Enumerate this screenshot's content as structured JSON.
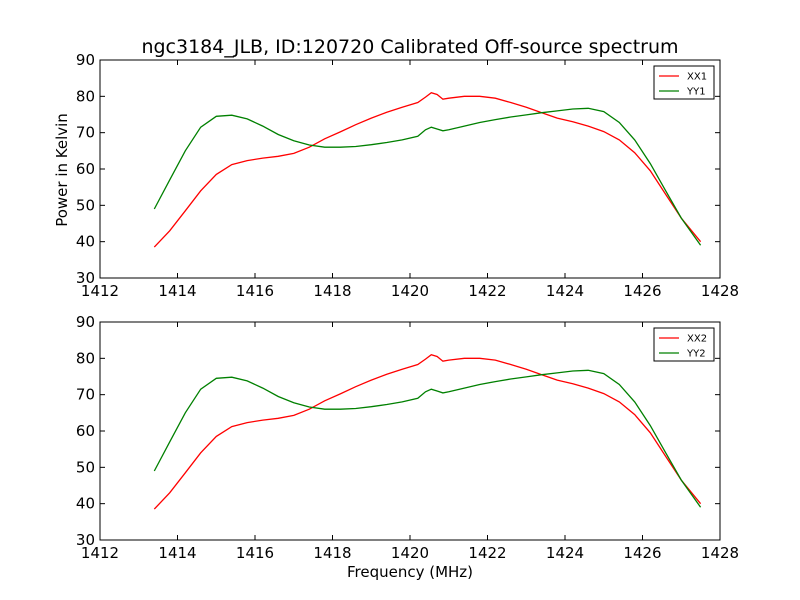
{
  "title": "ngc3184_JLB, ID:120720 Calibrated Off-source spectrum",
  "xlabel": "Frequency (MHz)",
  "ylabel": "Power in Kelvin",
  "colors": {
    "XX": "#ff0000",
    "YY": "#008000",
    "axes": "#000000"
  },
  "chart_data": [
    {
      "type": "line",
      "xlabel": "",
      "ylabel": "Power in Kelvin",
      "xlim": [
        1412,
        1428
      ],
      "ylim": [
        30,
        90
      ],
      "xticks": [
        1412,
        1414,
        1416,
        1418,
        1420,
        1422,
        1424,
        1426,
        1428
      ],
      "yticks": [
        30,
        40,
        50,
        60,
        70,
        80,
        90
      ],
      "grid": false,
      "legend": "top-right",
      "series": [
        {
          "name": "XX1",
          "color": "#ff0000",
          "x": [
            1413.4,
            1413.8,
            1414.2,
            1414.6,
            1415.0,
            1415.4,
            1415.8,
            1416.2,
            1416.6,
            1417.0,
            1417.4,
            1417.8,
            1418.2,
            1418.6,
            1419.0,
            1419.4,
            1419.8,
            1420.2,
            1420.4,
            1420.55,
            1420.7,
            1420.85,
            1421.0,
            1421.4,
            1421.8,
            1422.2,
            1422.6,
            1423.0,
            1423.4,
            1423.8,
            1424.2,
            1424.6,
            1425.0,
            1425.4,
            1425.8,
            1426.2,
            1426.6,
            1427.0,
            1427.5
          ],
          "y": [
            38.5,
            43.0,
            48.5,
            54.0,
            58.5,
            61.2,
            62.3,
            63.0,
            63.5,
            64.3,
            66.0,
            68.3,
            70.2,
            72.2,
            74.0,
            75.6,
            77.0,
            78.3,
            79.8,
            81.0,
            80.5,
            79.2,
            79.5,
            80.0,
            80.0,
            79.5,
            78.3,
            77.0,
            75.5,
            74.0,
            73.0,
            71.8,
            70.3,
            68.0,
            64.5,
            59.5,
            53.0,
            46.5,
            40.0
          ]
        },
        {
          "name": "YY1",
          "color": "#008000",
          "x": [
            1413.4,
            1413.8,
            1414.2,
            1414.6,
            1415.0,
            1415.4,
            1415.8,
            1416.2,
            1416.6,
            1417.0,
            1417.4,
            1417.8,
            1418.2,
            1418.6,
            1419.0,
            1419.4,
            1419.8,
            1420.2,
            1420.4,
            1420.55,
            1420.7,
            1420.85,
            1421.0,
            1421.4,
            1421.8,
            1422.2,
            1422.6,
            1423.0,
            1423.4,
            1423.8,
            1424.2,
            1424.6,
            1425.0,
            1425.4,
            1425.8,
            1426.2,
            1426.6,
            1427.0,
            1427.5
          ],
          "y": [
            49.0,
            57.0,
            65.0,
            71.5,
            74.5,
            74.8,
            73.8,
            71.8,
            69.5,
            67.8,
            66.6,
            66.0,
            66.0,
            66.2,
            66.7,
            67.3,
            68.0,
            69.0,
            70.8,
            71.5,
            71.0,
            70.5,
            70.8,
            71.8,
            72.8,
            73.6,
            74.3,
            74.9,
            75.5,
            76.0,
            76.5,
            76.7,
            75.8,
            72.8,
            68.0,
            61.5,
            54.0,
            46.5,
            39.0
          ]
        }
      ]
    },
    {
      "type": "line",
      "xlabel": "Frequency (MHz)",
      "ylabel": "",
      "xlim": [
        1412,
        1428
      ],
      "ylim": [
        30,
        90
      ],
      "xticks": [
        1412,
        1414,
        1416,
        1418,
        1420,
        1422,
        1424,
        1426,
        1428
      ],
      "yticks": [
        30,
        40,
        50,
        60,
        70,
        80,
        90
      ],
      "grid": false,
      "legend": "top-right",
      "series": [
        {
          "name": "XX2",
          "color": "#ff0000",
          "x": [
            1413.4,
            1413.8,
            1414.2,
            1414.6,
            1415.0,
            1415.4,
            1415.8,
            1416.2,
            1416.6,
            1417.0,
            1417.4,
            1417.8,
            1418.2,
            1418.6,
            1419.0,
            1419.4,
            1419.8,
            1420.2,
            1420.4,
            1420.55,
            1420.7,
            1420.85,
            1421.0,
            1421.4,
            1421.8,
            1422.2,
            1422.6,
            1423.0,
            1423.4,
            1423.8,
            1424.2,
            1424.6,
            1425.0,
            1425.4,
            1425.8,
            1426.2,
            1426.6,
            1427.0,
            1427.5
          ],
          "y": [
            38.5,
            43.0,
            48.5,
            54.0,
            58.5,
            61.2,
            62.3,
            63.0,
            63.5,
            64.3,
            66.0,
            68.3,
            70.2,
            72.2,
            74.0,
            75.6,
            77.0,
            78.3,
            79.8,
            81.0,
            80.5,
            79.2,
            79.5,
            80.0,
            80.0,
            79.5,
            78.3,
            77.0,
            75.5,
            74.0,
            73.0,
            71.8,
            70.3,
            68.0,
            64.5,
            59.5,
            53.0,
            46.5,
            40.0
          ]
        },
        {
          "name": "YY2",
          "color": "#008000",
          "x": [
            1413.4,
            1413.8,
            1414.2,
            1414.6,
            1415.0,
            1415.4,
            1415.8,
            1416.2,
            1416.6,
            1417.0,
            1417.4,
            1417.8,
            1418.2,
            1418.6,
            1419.0,
            1419.4,
            1419.8,
            1420.2,
            1420.4,
            1420.55,
            1420.7,
            1420.85,
            1421.0,
            1421.4,
            1421.8,
            1422.2,
            1422.6,
            1423.0,
            1423.4,
            1423.8,
            1424.2,
            1424.6,
            1425.0,
            1425.4,
            1425.8,
            1426.2,
            1426.6,
            1427.0,
            1427.5
          ],
          "y": [
            49.0,
            57.0,
            65.0,
            71.5,
            74.5,
            74.8,
            73.8,
            71.8,
            69.5,
            67.8,
            66.6,
            66.0,
            66.0,
            66.2,
            66.7,
            67.3,
            68.0,
            69.0,
            70.8,
            71.5,
            71.0,
            70.5,
            70.8,
            71.8,
            72.8,
            73.6,
            74.3,
            74.9,
            75.5,
            76.0,
            76.5,
            76.7,
            75.8,
            72.8,
            68.0,
            61.5,
            54.0,
            46.5,
            39.0
          ]
        }
      ]
    }
  ]
}
